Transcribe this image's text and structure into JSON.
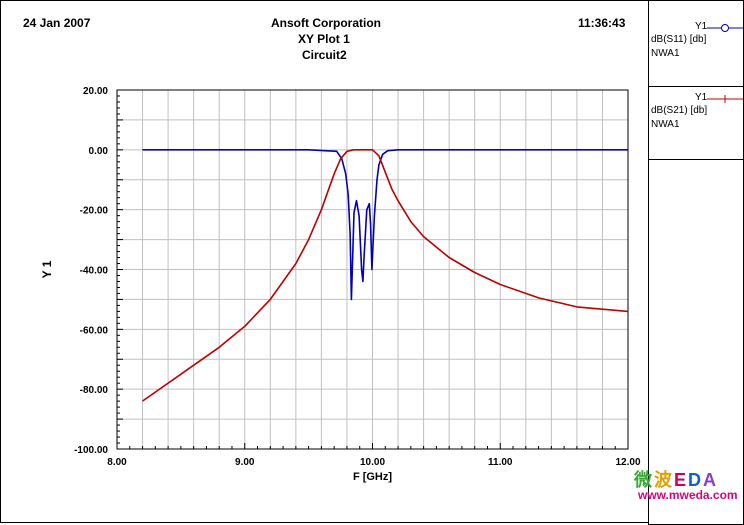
{
  "header": {
    "date": "24 Jan 2007",
    "company": "Ansoft Corporation",
    "plot_name": "XY Plot 1",
    "circuit": "Circuit2",
    "time": "11:36:43"
  },
  "legend": [
    {
      "axis": "Y1",
      "trace": "dB(S11) [db]",
      "source": "NWA1",
      "color": "#0000c0",
      "marker": "circle"
    },
    {
      "axis": "Y1",
      "trace": "dB(S21) [db]",
      "source": "NWA1",
      "color": "#c00000",
      "marker": "plus"
    }
  ],
  "watermark": {
    "logo": "微波EDA",
    "url": "www.mweda.com"
  },
  "chart_data": {
    "type": "line",
    "xlabel": "F [GHz]",
    "ylabel": "Y 1",
    "xlim": [
      8.0,
      12.0
    ],
    "ylim": [
      -100.0,
      20.0
    ],
    "xticks": [
      "8.00",
      "9.00",
      "10.00",
      "11.00",
      "12.00"
    ],
    "yticks": [
      "20.00",
      "0.00",
      "-20.00",
      "-40.00",
      "-60.00",
      "-80.00",
      "-100.00"
    ],
    "grid": true,
    "series": [
      {
        "name": "dB(S11) [db]",
        "color": "#0000c0",
        "x": [
          8.2,
          9.5,
          9.72,
          9.76,
          9.79,
          9.81,
          9.825,
          9.835,
          9.855,
          9.875,
          9.895,
          9.915,
          9.925,
          9.935,
          9.955,
          9.975,
          9.985,
          9.995,
          10.015,
          10.035,
          10.05,
          10.08,
          10.12,
          10.2,
          11.0,
          12.0
        ],
        "y": [
          0,
          0,
          -0.5,
          -3,
          -8,
          -15,
          -28,
          -50,
          -21,
          -17,
          -22,
          -40,
          -44,
          -35,
          -20,
          -18,
          -25,
          -40,
          -22,
          -10,
          -5,
          -1.5,
          -0.3,
          0,
          0,
          0
        ]
      },
      {
        "name": "dB(S21) [db]",
        "color": "#c00000",
        "x": [
          8.2,
          8.5,
          8.8,
          9.0,
          9.2,
          9.4,
          9.5,
          9.6,
          9.65,
          9.7,
          9.75,
          9.8,
          9.85,
          9.9,
          9.95,
          10.0,
          10.05,
          10.1,
          10.15,
          10.2,
          10.3,
          10.4,
          10.6,
          10.8,
          11.0,
          11.3,
          11.6,
          12.0
        ],
        "y": [
          -84,
          -75,
          -66,
          -59,
          -50,
          -38,
          -30,
          -20,
          -14,
          -8,
          -3,
          -0.5,
          0,
          0,
          0,
          0,
          -2,
          -7.5,
          -13,
          -17,
          -24,
          -29,
          -36,
          -41,
          -45,
          -49.5,
          -52.5,
          -54
        ]
      }
    ]
  }
}
